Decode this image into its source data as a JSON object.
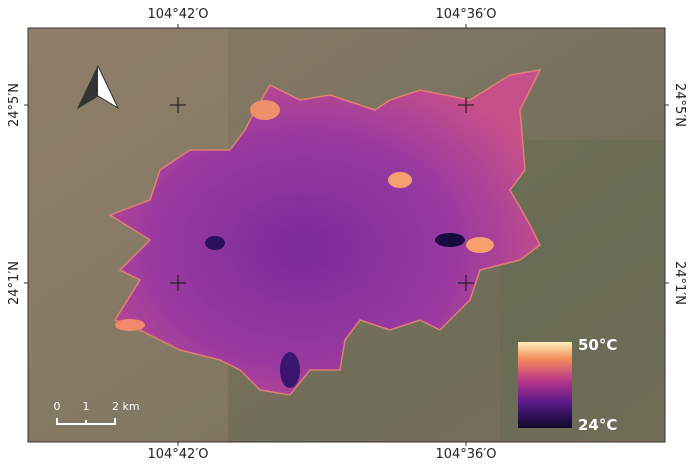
{
  "grid_labels": {
    "top": [
      "104°42′O",
      "104°36′O"
    ],
    "bottom": [
      "104°42′O",
      "104°36′O"
    ],
    "left": [
      "24°5′N",
      "24°1′N"
    ],
    "right": [
      "24°5′N",
      "24°1′N"
    ]
  },
  "legend": {
    "max_label": "50°C",
    "min_label": "24°C"
  },
  "scale_bar": {
    "labels": [
      "0",
      "1",
      "2 km"
    ]
  }
}
